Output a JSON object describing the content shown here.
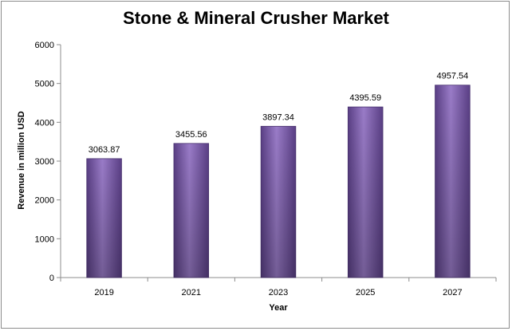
{
  "chart_data": {
    "type": "bar",
    "title": "Stone & Mineral Crusher Market",
    "xlabel": "Year",
    "ylabel": "Revenue in million USD",
    "categories": [
      "2019",
      "2021",
      "2023",
      "2025",
      "2027"
    ],
    "values": [
      3063.87,
      3455.56,
      3897.34,
      4395.59,
      4957.54
    ],
    "data_labels": [
      "3063.87",
      "3455.56",
      "3897.34",
      "4395.59",
      "4957.54"
    ],
    "ylim": [
      0,
      6000
    ],
    "yticks": [
      0,
      1000,
      2000,
      3000,
      4000,
      5000,
      6000
    ],
    "grid": false,
    "legend": "none",
    "colors": {
      "bar": "#7b5ba6",
      "bar_dark": "#4a3370",
      "axis": "#8c8c8c",
      "background": "#ffffff"
    }
  }
}
